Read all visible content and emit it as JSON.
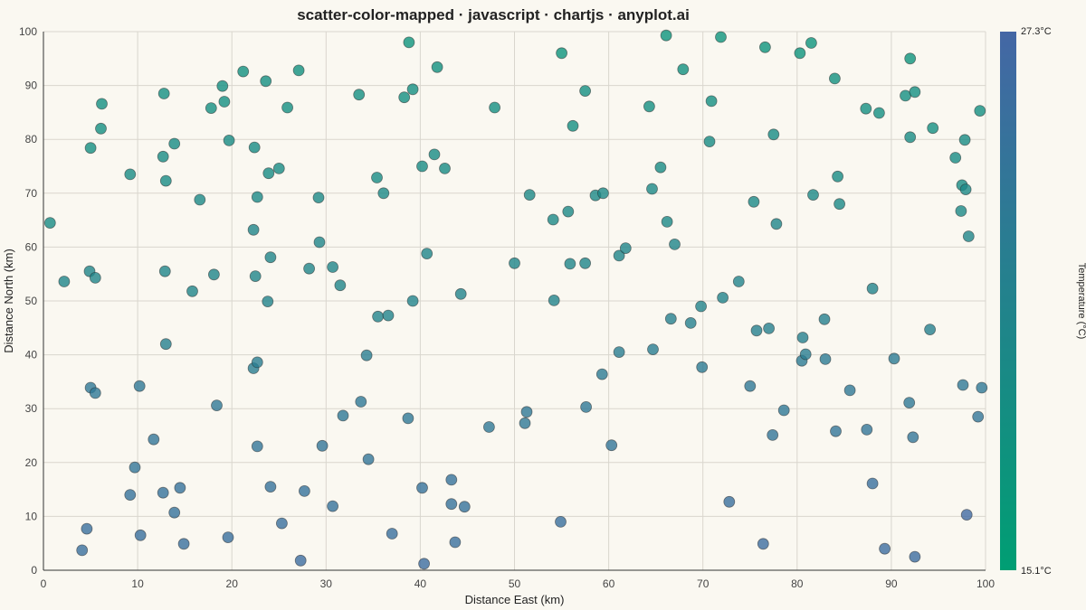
{
  "chart_data": {
    "type": "scatter",
    "title": "scatter-color-mapped · javascript · chartjs · anyplot.ai",
    "xlabel": "Distance East (km)",
    "ylabel": "Distance North (km)",
    "xlim": [
      0,
      100
    ],
    "ylim": [
      0,
      100
    ],
    "xticks": [
      "0",
      "10",
      "20",
      "30",
      "40",
      "50",
      "60",
      "70",
      "80",
      "90",
      "100"
    ],
    "yticks": [
      "0",
      "10",
      "20",
      "30",
      "40",
      "50",
      "60",
      "70",
      "80",
      "90",
      "100"
    ],
    "grid": true,
    "colorbar": {
      "label": "Temperature (°C)",
      "min_label": "15.1°C",
      "max_label": "27.3°C",
      "min": 15.1,
      "max": 27.3,
      "color_low": "#009E73",
      "color_high": "#4467A5"
    },
    "points": [
      [
        0.7,
        64.5,
        0.35
      ],
      [
        2.2,
        53.6,
        0.45
      ],
      [
        4.9,
        55.5,
        0.45
      ],
      [
        5.5,
        54.3,
        0.45
      ],
      [
        5.0,
        78.4,
        0.3
      ],
      [
        6.1,
        82.0,
        0.3
      ],
      [
        6.2,
        86.6,
        0.3
      ],
      [
        4.1,
        3.7,
        0.85
      ],
      [
        4.6,
        7.7,
        0.85
      ],
      [
        5.0,
        33.9,
        0.7
      ],
      [
        5.5,
        32.9,
        0.7
      ],
      [
        9.2,
        73.5,
        0.35
      ],
      [
        9.7,
        19.1,
        0.75
      ],
      [
        9.2,
        14.0,
        0.8
      ],
      [
        10.2,
        34.2,
        0.7
      ],
      [
        10.3,
        6.5,
        0.85
      ],
      [
        11.7,
        24.3,
        0.75
      ],
      [
        12.8,
        88.5,
        0.3
      ],
      [
        12.7,
        76.8,
        0.35
      ],
      [
        13.0,
        72.3,
        0.35
      ],
      [
        13.9,
        79.2,
        0.35
      ],
      [
        12.9,
        55.5,
        0.45
      ],
      [
        13.0,
        42.0,
        0.55
      ],
      [
        12.7,
        14.4,
        0.8
      ],
      [
        13.9,
        10.7,
        0.8
      ],
      [
        14.5,
        15.3,
        0.8
      ],
      [
        14.9,
        4.9,
        0.85
      ],
      [
        15.8,
        51.8,
        0.45
      ],
      [
        16.6,
        68.8,
        0.4
      ],
      [
        17.8,
        85.8,
        0.3
      ],
      [
        18.1,
        54.9,
        0.45
      ],
      [
        18.4,
        30.6,
        0.7
      ],
      [
        19.0,
        89.9,
        0.3
      ],
      [
        19.2,
        87.0,
        0.3
      ],
      [
        19.7,
        79.8,
        0.35
      ],
      [
        19.6,
        6.1,
        0.85
      ],
      [
        21.2,
        92.6,
        0.25
      ],
      [
        22.3,
        63.2,
        0.45
      ],
      [
        22.4,
        78.5,
        0.35
      ],
      [
        22.5,
        54.6,
        0.45
      ],
      [
        22.3,
        37.5,
        0.6
      ],
      [
        22.7,
        38.6,
        0.6
      ],
      [
        22.7,
        69.3,
        0.4
      ],
      [
        22.7,
        23.0,
        0.75
      ],
      [
        23.6,
        90.8,
        0.3
      ],
      [
        23.9,
        73.7,
        0.35
      ],
      [
        23.8,
        49.9,
        0.5
      ],
      [
        24.1,
        58.1,
        0.45
      ],
      [
        24.1,
        15.5,
        0.8
      ],
      [
        25.0,
        74.6,
        0.35
      ],
      [
        25.3,
        8.7,
        0.85
      ],
      [
        25.9,
        85.9,
        0.3
      ],
      [
        27.1,
        92.8,
        0.25
      ],
      [
        27.3,
        1.8,
        0.9
      ],
      [
        27.7,
        14.7,
        0.8
      ],
      [
        28.2,
        56.0,
        0.45
      ],
      [
        29.2,
        69.2,
        0.4
      ],
      [
        29.3,
        60.9,
        0.45
      ],
      [
        29.6,
        23.1,
        0.75
      ],
      [
        30.7,
        56.3,
        0.45
      ],
      [
        30.7,
        11.9,
        0.8
      ],
      [
        31.5,
        52.9,
        0.45
      ],
      [
        31.8,
        28.7,
        0.7
      ],
      [
        33.5,
        88.3,
        0.3
      ],
      [
        33.7,
        31.3,
        0.7
      ],
      [
        34.3,
        39.9,
        0.6
      ],
      [
        34.5,
        20.6,
        0.75
      ],
      [
        35.4,
        72.9,
        0.35
      ],
      [
        35.5,
        47.1,
        0.5
      ],
      [
        36.1,
        70.0,
        0.4
      ],
      [
        36.6,
        47.3,
        0.5
      ],
      [
        37.0,
        6.8,
        0.85
      ],
      [
        38.3,
        87.8,
        0.3
      ],
      [
        38.7,
        28.2,
        0.7
      ],
      [
        38.8,
        98.0,
        0.2
      ],
      [
        39.2,
        89.3,
        0.3
      ],
      [
        39.2,
        50.0,
        0.5
      ],
      [
        40.2,
        75.0,
        0.35
      ],
      [
        40.2,
        15.3,
        0.8
      ],
      [
        40.4,
        1.2,
        0.9
      ],
      [
        40.7,
        58.8,
        0.45
      ],
      [
        41.5,
        77.2,
        0.35
      ],
      [
        41.8,
        93.4,
        0.25
      ],
      [
        42.6,
        74.6,
        0.35
      ],
      [
        43.3,
        16.8,
        0.8
      ],
      [
        43.3,
        12.3,
        0.8
      ],
      [
        43.7,
        5.2,
        0.85
      ],
      [
        44.3,
        51.3,
        0.5
      ],
      [
        44.7,
        11.8,
        0.8
      ],
      [
        47.3,
        26.6,
        0.7
      ],
      [
        47.9,
        85.9,
        0.3
      ],
      [
        50.0,
        57.0,
        0.45
      ],
      [
        51.1,
        27.3,
        0.7
      ],
      [
        51.3,
        29.4,
        0.7
      ],
      [
        51.6,
        69.7,
        0.4
      ],
      [
        54.1,
        65.1,
        0.4
      ],
      [
        54.2,
        50.1,
        0.5
      ],
      [
        55.0,
        96.0,
        0.2
      ],
      [
        54.9,
        9.0,
        0.85
      ],
      [
        55.7,
        66.6,
        0.4
      ],
      [
        55.9,
        56.9,
        0.45
      ],
      [
        56.2,
        82.5,
        0.3
      ],
      [
        57.5,
        89.0,
        0.3
      ],
      [
        57.5,
        57.0,
        0.45
      ],
      [
        57.6,
        30.3,
        0.7
      ],
      [
        58.6,
        69.6,
        0.4
      ],
      [
        59.3,
        36.4,
        0.65
      ],
      [
        59.4,
        70.0,
        0.4
      ],
      [
        60.3,
        23.2,
        0.75
      ],
      [
        61.1,
        58.4,
        0.45
      ],
      [
        61.1,
        40.5,
        0.6
      ],
      [
        61.8,
        59.8,
        0.45
      ],
      [
        64.3,
        86.1,
        0.3
      ],
      [
        64.6,
        70.8,
        0.4
      ],
      [
        64.7,
        41.0,
        0.6
      ],
      [
        65.5,
        74.8,
        0.35
      ],
      [
        66.1,
        99.3,
        0.2
      ],
      [
        66.2,
        64.7,
        0.4
      ],
      [
        66.6,
        46.7,
        0.55
      ],
      [
        67.0,
        60.5,
        0.45
      ],
      [
        67.9,
        93.0,
        0.25
      ],
      [
        68.7,
        45.9,
        0.55
      ],
      [
        69.8,
        49.0,
        0.5
      ],
      [
        69.9,
        37.7,
        0.65
      ],
      [
        70.7,
        79.6,
        0.35
      ],
      [
        70.9,
        87.1,
        0.3
      ],
      [
        71.9,
        99.0,
        0.2
      ],
      [
        72.1,
        50.6,
        0.5
      ],
      [
        72.8,
        12.7,
        0.85
      ],
      [
        73.8,
        53.6,
        0.5
      ],
      [
        75.0,
        34.2,
        0.7
      ],
      [
        75.4,
        68.4,
        0.4
      ],
      [
        75.7,
        44.5,
        0.55
      ],
      [
        76.4,
        4.9,
        0.9
      ],
      [
        76.6,
        97.1,
        0.2
      ],
      [
        77.0,
        44.9,
        0.55
      ],
      [
        77.4,
        25.1,
        0.75
      ],
      [
        77.5,
        80.9,
        0.35
      ],
      [
        77.8,
        64.3,
        0.45
      ],
      [
        78.6,
        29.7,
        0.7
      ],
      [
        80.3,
        96.0,
        0.2
      ],
      [
        80.5,
        38.9,
        0.65
      ],
      [
        80.6,
        43.2,
        0.55
      ],
      [
        80.9,
        40.1,
        0.6
      ],
      [
        81.5,
        97.9,
        0.2
      ],
      [
        81.7,
        69.7,
        0.4
      ],
      [
        82.9,
        46.6,
        0.55
      ],
      [
        83.0,
        39.2,
        0.65
      ],
      [
        84.0,
        91.3,
        0.25
      ],
      [
        84.1,
        25.8,
        0.75
      ],
      [
        84.3,
        73.1,
        0.35
      ],
      [
        84.5,
        68.0,
        0.4
      ],
      [
        85.6,
        33.4,
        0.7
      ],
      [
        87.3,
        85.7,
        0.3
      ],
      [
        87.4,
        26.1,
        0.75
      ],
      [
        88.0,
        52.3,
        0.5
      ],
      [
        88.0,
        16.1,
        0.85
      ],
      [
        88.7,
        84.9,
        0.3
      ],
      [
        89.3,
        4.0,
        0.9
      ],
      [
        90.3,
        39.3,
        0.65
      ],
      [
        91.5,
        88.1,
        0.3
      ],
      [
        92.0,
        95.0,
        0.2
      ],
      [
        92.0,
        80.4,
        0.35
      ],
      [
        91.9,
        31.1,
        0.7
      ],
      [
        92.3,
        24.7,
        0.75
      ],
      [
        92.5,
        88.8,
        0.3
      ],
      [
        92.5,
        2.5,
        0.9
      ],
      [
        94.1,
        44.7,
        0.55
      ],
      [
        94.4,
        82.1,
        0.3
      ],
      [
        96.8,
        76.6,
        0.35
      ],
      [
        97.4,
        66.7,
        0.4
      ],
      [
        97.5,
        71.5,
        0.35
      ],
      [
        97.6,
        34.4,
        0.7
      ],
      [
        97.8,
        79.9,
        0.35
      ],
      [
        97.9,
        70.7,
        0.4
      ],
      [
        98.0,
        10.3,
        0.95
      ],
      [
        98.2,
        62.0,
        0.45
      ],
      [
        99.2,
        28.5,
        0.75
      ],
      [
        99.4,
        85.3,
        0.3
      ],
      [
        99.6,
        33.9,
        0.7
      ]
    ]
  }
}
